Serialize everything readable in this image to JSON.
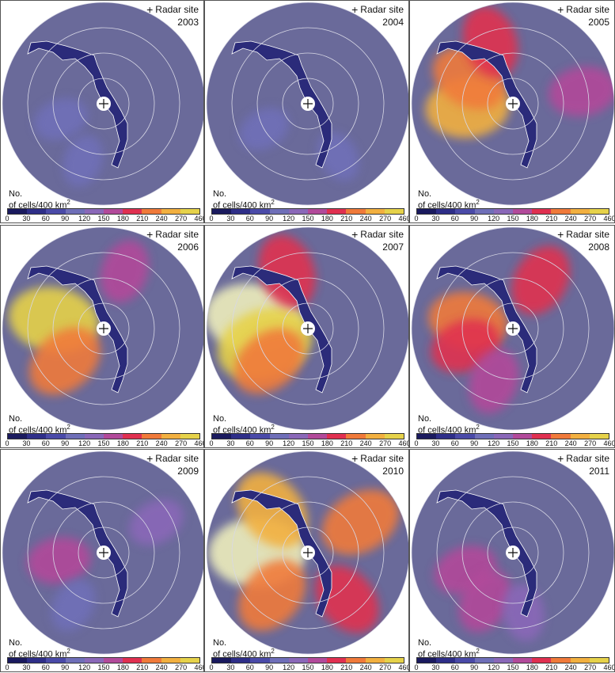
{
  "legend": {
    "radar_site": "Radar site",
    "unit_line1": "No.",
    "unit_line2": "of cells/400 km",
    "unit_exponent": "2",
    "ticks": [
      "0",
      "30",
      "60",
      "90",
      "120",
      "150",
      "180",
      "210",
      "240",
      "270",
      "460"
    ],
    "colors": [
      "#1a1a5e",
      "#2e2e88",
      "#4a4aa8",
      "#6f6fb8",
      "#8a68b8",
      "#b24a9a",
      "#e03050",
      "#f07a3a",
      "#f2b040",
      "#e6d24a",
      "#eeeebc"
    ],
    "background_color": "#6a6a9a"
  },
  "panels": [
    {
      "year": "2003"
    },
    {
      "year": "2004"
    },
    {
      "year": "2005"
    },
    {
      "year": "2006"
    },
    {
      "year": "2007"
    },
    {
      "year": "2008"
    },
    {
      "year": "2009"
    },
    {
      "year": "2010"
    },
    {
      "year": "2011"
    }
  ],
  "chart_data": {
    "type": "heatmap",
    "series": [
      {
        "name": "2003",
        "hotspots": [
          {
            "az": 250,
            "r": 0.45,
            "v": 110
          },
          {
            "az": 200,
            "r": 0.6,
            "v": 100
          }
        ]
      },
      {
        "name": "2004",
        "hotspots": [
          {
            "az": 240,
            "r": 0.5,
            "v": 100
          },
          {
            "az": 150,
            "r": 0.6,
            "v": 95
          }
        ]
      },
      {
        "name": "2005",
        "hotspots": [
          {
            "az": 265,
            "r": 0.45,
            "v": 240
          },
          {
            "az": 300,
            "r": 0.5,
            "v": 210
          },
          {
            "az": 340,
            "r": 0.65,
            "v": 190
          },
          {
            "az": 80,
            "r": 0.7,
            "v": 170
          }
        ]
      },
      {
        "name": "2006",
        "hotspots": [
          {
            "az": 280,
            "r": 0.5,
            "v": 270
          },
          {
            "az": 230,
            "r": 0.5,
            "v": 220
          },
          {
            "az": 20,
            "r": 0.6,
            "v": 150
          }
        ]
      },
      {
        "name": "2007",
        "hotspots": [
          {
            "az": 280,
            "r": 0.55,
            "v": 460
          },
          {
            "az": 250,
            "r": 0.45,
            "v": 300
          },
          {
            "az": 340,
            "r": 0.6,
            "v": 200
          },
          {
            "az": 230,
            "r": 0.5,
            "v": 210
          }
        ]
      },
      {
        "name": "2008",
        "hotspots": [
          {
            "az": 280,
            "r": 0.45,
            "v": 220
          },
          {
            "az": 30,
            "r": 0.55,
            "v": 190
          },
          {
            "az": 250,
            "r": 0.5,
            "v": 180
          },
          {
            "az": 200,
            "r": 0.55,
            "v": 160
          }
        ]
      },
      {
        "name": "2009",
        "hotspots": [
          {
            "az": 260,
            "r": 0.45,
            "v": 150
          },
          {
            "az": 60,
            "r": 0.6,
            "v": 120
          },
          {
            "az": 210,
            "r": 0.6,
            "v": 110
          }
        ]
      },
      {
        "name": "2010",
        "hotspots": [
          {
            "az": 270,
            "r": 0.5,
            "v": 460
          },
          {
            "az": 320,
            "r": 0.55,
            "v": 240
          },
          {
            "az": 60,
            "r": 0.6,
            "v": 230
          },
          {
            "az": 140,
            "r": 0.6,
            "v": 200
          },
          {
            "az": 220,
            "r": 0.55,
            "v": 220
          }
        ]
      },
      {
        "name": "2011",
        "hotspots": [
          {
            "az": 250,
            "r": 0.5,
            "v": 150
          },
          {
            "az": 210,
            "r": 0.55,
            "v": 160
          },
          {
            "az": 170,
            "r": 0.6,
            "v": 120
          }
        ]
      }
    ],
    "color_levels": [
      0,
      30,
      60,
      90,
      120,
      150,
      180,
      210,
      240,
      270,
      460
    ],
    "range_rings": 4
  }
}
